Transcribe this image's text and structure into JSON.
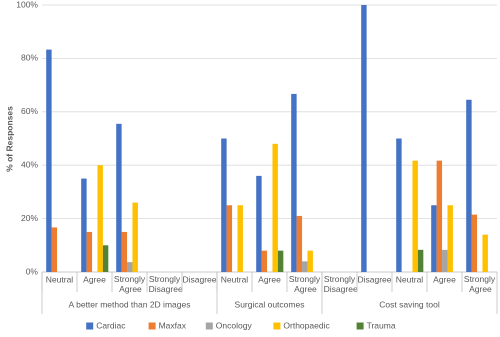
{
  "chart_data": {
    "type": "bar",
    "y_label": "% of Responses",
    "groups": [
      {
        "label": "A better method than 2D images",
        "categories": [
          "Neutral",
          "Agree",
          "Strongly Agree",
          "Strongly Disagree",
          "Disagree"
        ]
      },
      {
        "label": "Surgical outcomes",
        "categories": [
          "Neutral",
          "Agree",
          "Strongly Agree"
        ]
      },
      {
        "label": "Cost saving tool",
        "categories": [
          "Strongly Disagree",
          "Disagree",
          "Neutral",
          "Agree",
          "Strongly Agree"
        ]
      }
    ],
    "series": [
      {
        "name": "Cardiac",
        "color": "#4472c4",
        "values": [
          83.3,
          35,
          55.5,
          0,
          0,
          50,
          36,
          66.7,
          0,
          100,
          50,
          25,
          64.5
        ]
      },
      {
        "name": "Maxfax",
        "color": "#ed7d31",
        "values": [
          16.7,
          15,
          15,
          0,
          0,
          25,
          8,
          21,
          0,
          0,
          0,
          41.7,
          21.5
        ]
      },
      {
        "name": "Oncology",
        "color": "#a5a5a5",
        "values": [
          0,
          0,
          3.7,
          0,
          0,
          0,
          0,
          4,
          0,
          0,
          0,
          8.3,
          0
        ]
      },
      {
        "name": "Orthopaedic",
        "color": "#ffc000",
        "values": [
          0,
          40,
          26,
          0,
          0,
          25,
          48,
          8,
          0,
          0,
          41.7,
          25,
          14
        ]
      },
      {
        "name": "Trauma",
        "color": "#548235",
        "values": [
          0,
          10,
          0,
          0,
          0,
          0,
          8,
          0,
          0,
          0,
          8.3,
          0,
          0
        ]
      }
    ],
    "ylim": [
      0,
      100
    ],
    "yticks": [
      {
        "value": 0,
        "label": "0%"
      },
      {
        "value": 20,
        "label": "20%"
      },
      {
        "value": 40,
        "label": "40%"
      },
      {
        "value": 60,
        "label": "60%"
      },
      {
        "value": 80,
        "label": "80%"
      },
      {
        "value": 100,
        "label": "100%"
      }
    ],
    "grid": true,
    "legend": "bottom"
  }
}
